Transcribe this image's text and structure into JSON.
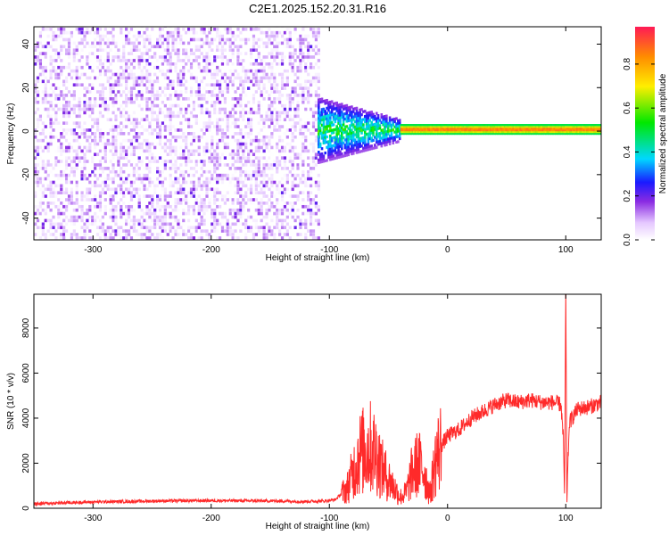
{
  "title": "C2E1.2025.152.20.31.R16",
  "chart_data": [
    {
      "type": "heatmap",
      "xlabel": "Height of straight line (km)",
      "ylabel": "Frequency (Hz)",
      "xlim": [
        -350,
        130
      ],
      "ylim": [
        -50,
        48
      ],
      "x_ticks": [
        -300,
        -200,
        -100,
        0,
        100
      ],
      "y_ticks": [
        -40,
        -20,
        0,
        20,
        40
      ],
      "colorbar": {
        "label": "Normalized spectral amplitude",
        "range": [
          0,
          0.97
        ],
        "ticks": [
          0.0,
          0.2,
          0.4,
          0.6,
          0.8
        ]
      },
      "description_of_values": [
        {
          "x_range": [
            -350,
            -110
          ],
          "freq_range": [
            -50,
            48
          ],
          "amplitude": [
            0.0,
            0.15
          ],
          "pattern": "scattered noise"
        },
        {
          "x_range": [
            -110,
            -40
          ],
          "freq_center": 0,
          "freq_halfwidth": [
            15,
            5
          ],
          "amplitude": [
            0.15,
            0.55
          ],
          "pattern": "transition cluster"
        },
        {
          "x_range": [
            -40,
            130
          ],
          "freq_center": 0.5,
          "freq_halfwidth": 2,
          "amplitude": [
            0.8,
            0.97
          ],
          "pattern": "narrow line near 0 Hz"
        }
      ]
    },
    {
      "type": "line",
      "xlabel": "Height of straight line (km)",
      "ylabel": "SNR (10 * v/v)",
      "xlim": [
        -350,
        130
      ],
      "ylim": [
        0,
        9500
      ],
      "x_ticks": [
        -300,
        -200,
        -100,
        0,
        100
      ],
      "y_ticks": [
        0,
        2000,
        4000,
        6000,
        8000
      ],
      "color": "#ff2a2a",
      "series_points": [
        [
          -350,
          200
        ],
        [
          -330,
          230
        ],
        [
          -300,
          280
        ],
        [
          -270,
          300
        ],
        [
          -250,
          320
        ],
        [
          -220,
          330
        ],
        [
          -200,
          340
        ],
        [
          -170,
          330
        ],
        [
          -140,
          320
        ],
        [
          -120,
          300
        ],
        [
          -105,
          320
        ],
        [
          -95,
          380
        ],
        [
          -85,
          900
        ],
        [
          -80,
          1600
        ],
        [
          -75,
          2400
        ],
        [
          -70,
          2600
        ],
        [
          -65,
          2700
        ],
        [
          -60,
          2400
        ],
        [
          -55,
          1700
        ],
        [
          -50,
          1300
        ],
        [
          -45,
          900
        ],
        [
          -40,
          500
        ],
        [
          -35,
          700
        ],
        [
          -30,
          1600
        ],
        [
          -25,
          2000
        ],
        [
          -20,
          1700
        ],
        [
          -15,
          600
        ],
        [
          -10,
          2200
        ],
        [
          -5,
          2800
        ],
        [
          0,
          3200
        ],
        [
          10,
          3500
        ],
        [
          20,
          4000
        ],
        [
          30,
          4300
        ],
        [
          40,
          4600
        ],
        [
          50,
          4800
        ],
        [
          60,
          4700
        ],
        [
          70,
          4800
        ],
        [
          80,
          4700
        ],
        [
          90,
          4700
        ],
        [
          96,
          4600
        ],
        [
          98,
          3000
        ],
        [
          99,
          600
        ],
        [
          100,
          9500
        ],
        [
          101,
          500
        ],
        [
          103,
          3800
        ],
        [
          110,
          4400
        ],
        [
          120,
          4500
        ],
        [
          130,
          4700
        ]
      ]
    }
  ]
}
